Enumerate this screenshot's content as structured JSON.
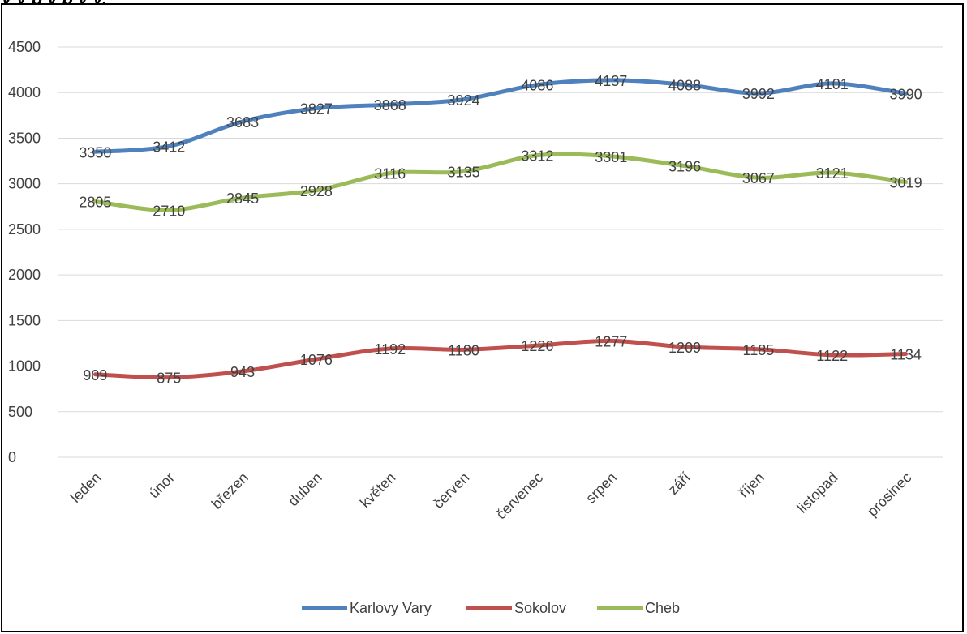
{
  "header": {
    "title_fragment": "y y p        y p                                    y y,"
  },
  "chart_data": {
    "type": "line",
    "categories": [
      "leden",
      "únor",
      "březen",
      "duben",
      "květen",
      "červen",
      "červenec",
      "srpen",
      "září",
      "říjen",
      "listopad",
      "prosinec"
    ],
    "series": [
      {
        "name": "Karlovy Vary",
        "color": "#4F81BD",
        "values": [
          3350,
          3412,
          3683,
          3827,
          3868,
          3924,
          4086,
          4137,
          4088,
          3992,
          4101,
          3990
        ]
      },
      {
        "name": "Sokolov",
        "color": "#C0504D",
        "values": [
          909,
          875,
          943,
          1076,
          1192,
          1180,
          1226,
          1277,
          1209,
          1185,
          1122,
          1134
        ]
      },
      {
        "name": "Cheb",
        "color": "#9BBB59",
        "values": [
          2805,
          2710,
          2845,
          2928,
          3116,
          3135,
          3312,
          3301,
          3196,
          3067,
          3121,
          3019
        ]
      }
    ],
    "ylim": [
      0,
      4500
    ],
    "yticks": [
      0,
      500,
      1000,
      1500,
      2000,
      2500,
      3000,
      3500,
      4000,
      4500
    ],
    "grid": true,
    "legend_position": "bottom",
    "data_labels": true
  }
}
